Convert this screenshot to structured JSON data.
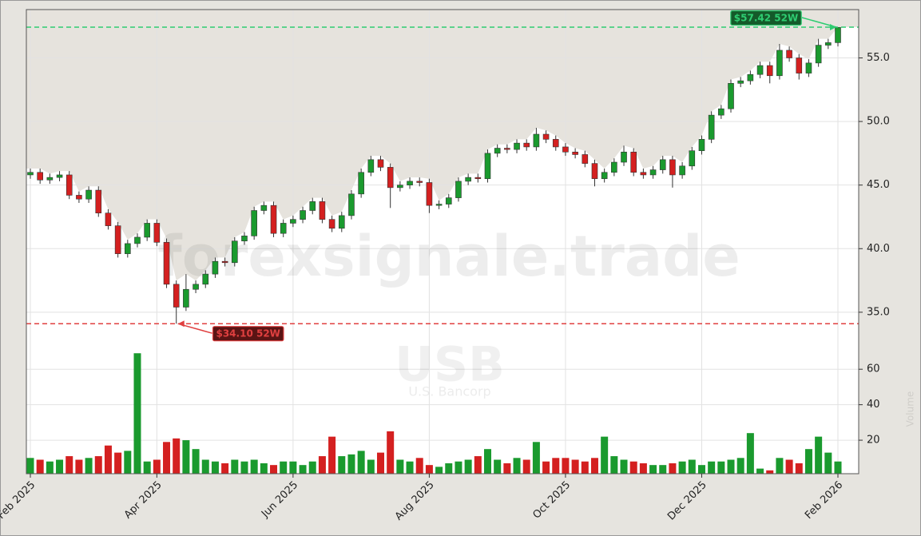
{
  "chart_data": [
    {
      "type": "candlestick",
      "up_color": "#1a9a2e",
      "down_color": "#d42020",
      "grid": true,
      "categories": [
        "Feb 2025",
        null,
        null,
        null,
        null,
        null,
        null,
        null,
        null,
        null,
        null,
        null,
        null,
        "Apr 2025",
        null,
        null,
        null,
        null,
        null,
        null,
        null,
        null,
        null,
        null,
        null,
        null,
        null,
        "Jun 2025",
        null,
        null,
        null,
        null,
        null,
        null,
        null,
        null,
        null,
        null,
        null,
        null,
        null,
        "Aug 2025",
        null,
        null,
        null,
        null,
        null,
        null,
        null,
        null,
        null,
        null,
        null,
        null,
        null,
        "Oct 2025",
        null,
        null,
        null,
        null,
        null,
        null,
        null,
        null,
        null,
        null,
        null,
        null,
        null,
        "Dec 2025",
        null,
        null,
        null,
        null,
        null,
        null,
        null,
        null,
        null,
        null,
        null,
        null,
        null,
        "Feb 2026"
      ],
      "open": [
        45.8,
        46.0,
        45.4,
        45.6,
        45.8,
        44.2,
        43.9,
        44.6,
        42.8,
        41.8,
        39.6,
        40.4,
        40.9,
        42.0,
        40.5,
        37.2,
        35.4,
        36.8,
        37.2,
        38.0,
        39.0,
        38.9,
        40.6,
        41.0,
        43.0,
        43.4,
        41.2,
        42.0,
        42.3,
        43.0,
        43.7,
        42.3,
        41.6,
        42.6,
        44.3,
        46.0,
        47.0,
        46.4,
        44.8,
        45.0,
        45.3,
        45.2,
        43.4,
        43.5,
        44.0,
        45.3,
        45.6,
        45.5,
        47.5,
        47.9,
        47.8,
        48.3,
        48.0,
        49.0,
        48.6,
        48.0,
        47.6,
        47.4,
        46.7,
        45.5,
        46.0,
        46.8,
        47.6,
        46.0,
        45.8,
        46.2,
        47.0,
        45.8,
        46.5,
        47.7,
        48.6,
        50.5,
        51.0,
        53.0,
        53.2,
        53.7,
        54.4,
        53.6,
        55.6,
        55.0,
        53.8,
        54.6,
        56.0,
        56.2
      ],
      "high": [
        46.3,
        46.3,
        45.9,
        46.1,
        46.1,
        44.5,
        44.9,
        44.9,
        43.1,
        42.1,
        40.7,
        41.2,
        42.3,
        42.3,
        40.8,
        37.5,
        38.0,
        37.5,
        38.3,
        39.3,
        39.3,
        40.9,
        41.3,
        43.3,
        43.7,
        43.7,
        42.3,
        42.6,
        43.3,
        44.0,
        44.0,
        42.6,
        42.9,
        44.6,
        46.3,
        47.3,
        47.3,
        46.7,
        45.3,
        45.6,
        45.6,
        45.5,
        43.8,
        44.3,
        45.6,
        45.9,
        45.9,
        47.8,
        48.2,
        48.2,
        48.6,
        48.6,
        49.5,
        49.3,
        48.9,
        48.3,
        47.9,
        47.7,
        47.0,
        46.3,
        47.1,
        48.1,
        47.9,
        46.3,
        46.5,
        47.3,
        47.3,
        46.8,
        48.0,
        48.9,
        50.8,
        51.3,
        53.3,
        53.5,
        54.0,
        54.7,
        54.7,
        56.1,
        55.9,
        55.3,
        54.9,
        56.5,
        56.5,
        57.42
      ],
      "low": [
        45.5,
        45.1,
        45.1,
        45.3,
        43.9,
        43.6,
        43.6,
        42.5,
        41.5,
        39.3,
        39.3,
        40.1,
        40.6,
        40.2,
        36.9,
        34.1,
        35.1,
        36.5,
        36.9,
        37.7,
        38.6,
        38.6,
        40.3,
        40.7,
        42.7,
        40.9,
        40.9,
        41.7,
        42.0,
        42.7,
        42.0,
        41.3,
        41.3,
        42.3,
        44.0,
        45.7,
        46.1,
        43.2,
        44.5,
        44.7,
        44.9,
        42.8,
        43.1,
        43.2,
        43.7,
        45.0,
        45.2,
        45.2,
        47.2,
        47.5,
        47.5,
        47.7,
        47.7,
        48.3,
        47.7,
        47.3,
        47.1,
        46.4,
        44.9,
        45.2,
        45.7,
        46.5,
        45.7,
        45.5,
        45.5,
        45.9,
        44.8,
        45.5,
        46.2,
        47.4,
        48.3,
        50.2,
        50.7,
        52.7,
        52.9,
        53.4,
        53.0,
        53.3,
        54.7,
        53.3,
        53.5,
        54.3,
        55.7,
        55.9
      ],
      "close": [
        46.0,
        45.4,
        45.6,
        45.8,
        44.2,
        43.9,
        44.6,
        42.8,
        41.8,
        39.6,
        40.4,
        40.9,
        42.0,
        40.5,
        37.2,
        35.4,
        36.8,
        37.2,
        38.0,
        39.0,
        38.9,
        40.6,
        41.0,
        43.0,
        43.4,
        41.2,
        42.0,
        42.3,
        43.0,
        43.7,
        42.3,
        41.6,
        42.6,
        44.3,
        46.0,
        47.0,
        46.4,
        44.8,
        45.0,
        45.3,
        45.2,
        43.4,
        43.5,
        44.0,
        45.3,
        45.6,
        45.5,
        47.5,
        47.9,
        47.8,
        48.3,
        48.0,
        49.0,
        48.6,
        48.0,
        47.6,
        47.4,
        46.7,
        45.5,
        46.0,
        46.8,
        47.6,
        46.0,
        45.8,
        46.2,
        47.0,
        45.8,
        46.5,
        47.7,
        48.6,
        50.5,
        51.0,
        53.0,
        53.2,
        53.7,
        54.4,
        53.6,
        55.6,
        55.0,
        53.8,
        54.6,
        56.0,
        56.2,
        57.4
      ],
      "ylim": [
        31.6,
        58.8
      ],
      "yticks": [
        {
          "value": 35,
          "label": "35.0"
        },
        {
          "value": 40,
          "label": "40.0"
        },
        {
          "value": 45,
          "label": "45.0"
        },
        {
          "value": 50,
          "label": "50.0"
        },
        {
          "value": 55,
          "label": "55.0"
        }
      ],
      "annotations": [
        {
          "value": 57.42,
          "label": "$57.42 52W",
          "color": "#2ecc71",
          "box_color": "#145a2a"
        },
        {
          "value": 34.1,
          "label": "$34.10 52W",
          "color": "#e04040",
          "box_color": "#5a1414"
        }
      ],
      "watermark": "forexsignale.trade",
      "symbol": "USB",
      "company": "U.S. Bancorp"
    },
    {
      "type": "bar",
      "y_label": "Volume",
      "values": [
        10,
        9,
        8,
        9,
        11,
        9,
        10,
        11,
        17,
        13,
        14,
        69,
        8,
        9,
        19,
        21,
        20,
        15,
        9,
        8,
        7,
        9,
        8,
        9,
        7,
        6,
        8,
        8,
        6,
        8,
        11,
        22,
        11,
        12,
        14,
        9,
        13,
        25,
        9,
        8,
        10,
        6,
        5,
        7,
        8,
        9,
        11,
        15,
        9,
        7,
        10,
        9,
        19,
        8,
        10,
        10,
        9,
        8,
        10,
        22,
        11,
        9,
        8,
        7,
        6,
        6,
        7,
        8,
        9,
        6,
        8,
        8,
        9,
        10,
        24,
        4,
        3,
        10,
        9,
        7,
        15,
        22,
        13,
        8
      ],
      "ylim": [
        0,
        70
      ],
      "yticks": [
        20,
        40,
        60
      ]
    }
  ]
}
